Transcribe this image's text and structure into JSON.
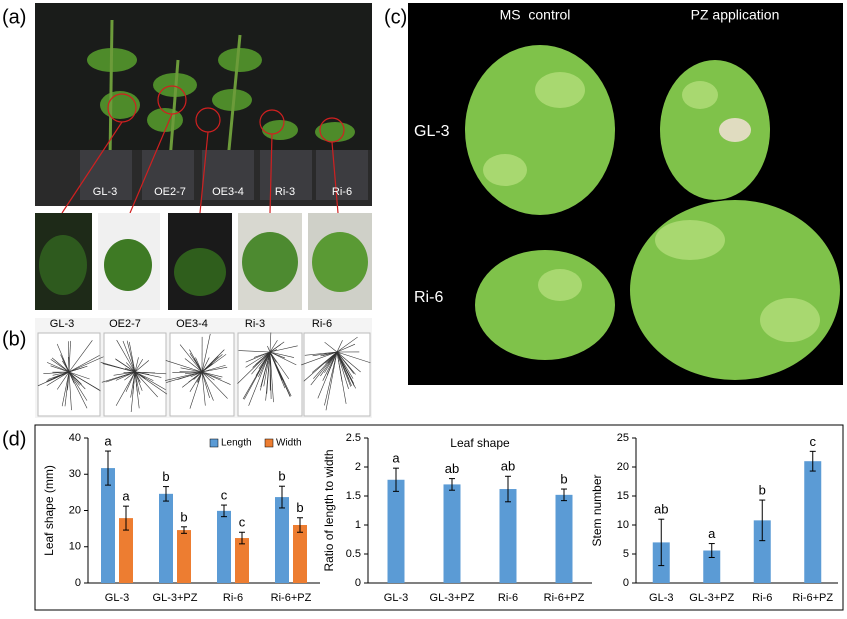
{
  "panels": {
    "a": {
      "label": "(a)",
      "pots": [
        "GL-3",
        "OE2-7",
        "OE3-4",
        "Ri-3",
        "Ri-6"
      ]
    },
    "b": {
      "label": "(b)",
      "lines": [
        "GL-3",
        "OE2-7",
        "OE3-4",
        "Ri-3",
        "Ri-6"
      ]
    },
    "c": {
      "label": "(c)",
      "columns": [
        "MS  control",
        "PZ application"
      ],
      "rows": [
        "GL-3",
        "Ri-6"
      ]
    },
    "d": {
      "label": "(d)"
    }
  },
  "chart_data": [
    {
      "type": "bar",
      "ylabel": "Leaf shape (mm)",
      "categories": [
        "GL-3",
        "GL-3+PZ",
        "Ri-6",
        "Ri-6+PZ"
      ],
      "ylim": [
        0,
        40
      ],
      "yticks": [
        0,
        10,
        20,
        30,
        40
      ],
      "legend": "top-right",
      "series": [
        {
          "name": "Length",
          "color": "#5b9bd5",
          "values": [
            31.7,
            24.6,
            19.9,
            23.7
          ],
          "errors": [
            4.7,
            2,
            1.6,
            3
          ],
          "letters": [
            "a",
            "b",
            "c",
            "b"
          ]
        },
        {
          "name": "Width",
          "color": "#ed7d31",
          "values": [
            17.9,
            14.6,
            12.4,
            16
          ],
          "errors": [
            3.3,
            0.9,
            1.6,
            2
          ],
          "letters": [
            "a",
            "b",
            "c",
            "b"
          ]
        }
      ]
    },
    {
      "type": "bar",
      "title": "Leaf shape",
      "ylabel": "Ratio of length to width",
      "categories": [
        "GL-3",
        "GL-3+PZ",
        "Ri-6",
        "Ri-6+PZ"
      ],
      "ylim": [
        0,
        2.5
      ],
      "yticks": [
        0,
        0.5,
        1,
        1.5,
        2,
        2.5
      ],
      "series": [
        {
          "color": "#5b9bd5",
          "values": [
            1.78,
            1.7,
            1.62,
            1.52
          ],
          "errors": [
            0.2,
            0.1,
            0.22,
            0.1
          ],
          "letters": [
            "a",
            "ab",
            "ab",
            "b"
          ]
        }
      ]
    },
    {
      "type": "bar",
      "ylabel": "Stem number",
      "categories": [
        "GL-3",
        "GL-3+PZ",
        "Ri-6",
        "Ri-6+PZ"
      ],
      "ylim": [
        0,
        25
      ],
      "yticks": [
        0,
        5,
        10,
        15,
        20,
        25
      ],
      "series": [
        {
          "color": "#5b9bd5",
          "values": [
            7,
            5.6,
            10.8,
            21
          ],
          "errors": [
            4,
            1.2,
            3.5,
            1.7
          ],
          "letters": [
            "ab",
            "a",
            "b",
            "c"
          ]
        }
      ]
    }
  ]
}
